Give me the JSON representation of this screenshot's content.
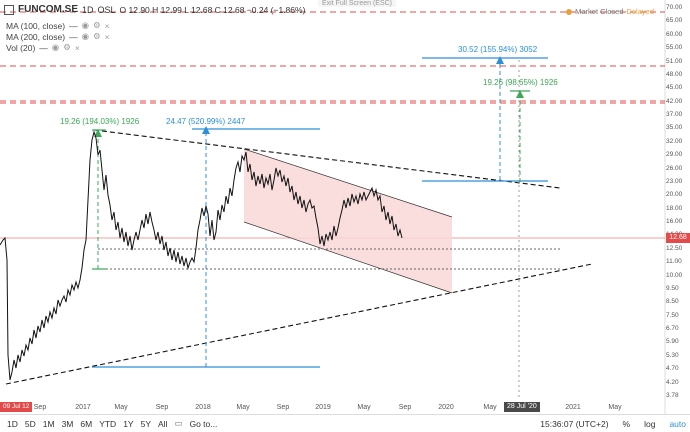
{
  "header": {
    "symbol": "FUNCOM.SE",
    "interval": "1D",
    "exchange": "OSL",
    "ohlc": "O 12.90  H 12.99  L 12.68  C 12.68  −0.24 (−1.86%)"
  },
  "indicators": [
    {
      "label": "MA (100, close)",
      "value": "—"
    },
    {
      "label": "MA (200, close)",
      "value": "—"
    },
    {
      "label": "Vol (20)",
      "value": "—"
    }
  ],
  "exit_fullscreen": "Exit Full Screen (ESC)",
  "market_status": {
    "label": "Market Closed",
    "state": "Delayed"
  },
  "y_axis_labels": [
    "70.00",
    "65.00",
    "60.00",
    "55.00",
    "51.00",
    "48.00",
    "45.00",
    "42.00",
    "37.00",
    "35.00",
    "32.00",
    "29.00",
    "26.00",
    "23.00",
    "20.00",
    "18.00",
    "16.00",
    "14.00",
    "12.50",
    "11.00",
    "10.00",
    "9.50",
    "8.50",
    "7.50",
    "6.70",
    "5.90",
    "5.30",
    "4.70",
    "4.20",
    "3.78"
  ],
  "x_axis_labels": [
    "Sep",
    "2017",
    "May",
    "Sep",
    "2018",
    "May",
    "Sep",
    "2019",
    "May",
    "Sep",
    "2020",
    "May",
    "Sep",
    "2021",
    "May"
  ],
  "price_tags": {
    "current": "12.68",
    "left": "09 Jul 12"
  },
  "date_tag": "28 Jul '20",
  "annotations": [
    {
      "text": "19.26 (194.03%) 1926",
      "color": "#3aa857"
    },
    {
      "text": "24.47 (520.99%) 2447",
      "color": "#2d8fd8"
    },
    {
      "text": "30.52 (155.94%) 3052",
      "color": "#2d8fd8"
    },
    {
      "text": "19.26 (98.65%) 1926",
      "color": "#3aa857"
    }
  ],
  "timeframes": [
    "1D",
    "5D",
    "1M",
    "3M",
    "6M",
    "YTD",
    "1Y",
    "5Y",
    "All"
  ],
  "goto_label": "Go to...",
  "clock": "15:36:07 (UTC+2)",
  "scale_controls": [
    "%",
    "log",
    "auto"
  ],
  "colors": {
    "red": "#e34b4b",
    "blue": "#2d8fd8",
    "green": "#3aa857",
    "channel": "#f9d7d7"
  }
}
